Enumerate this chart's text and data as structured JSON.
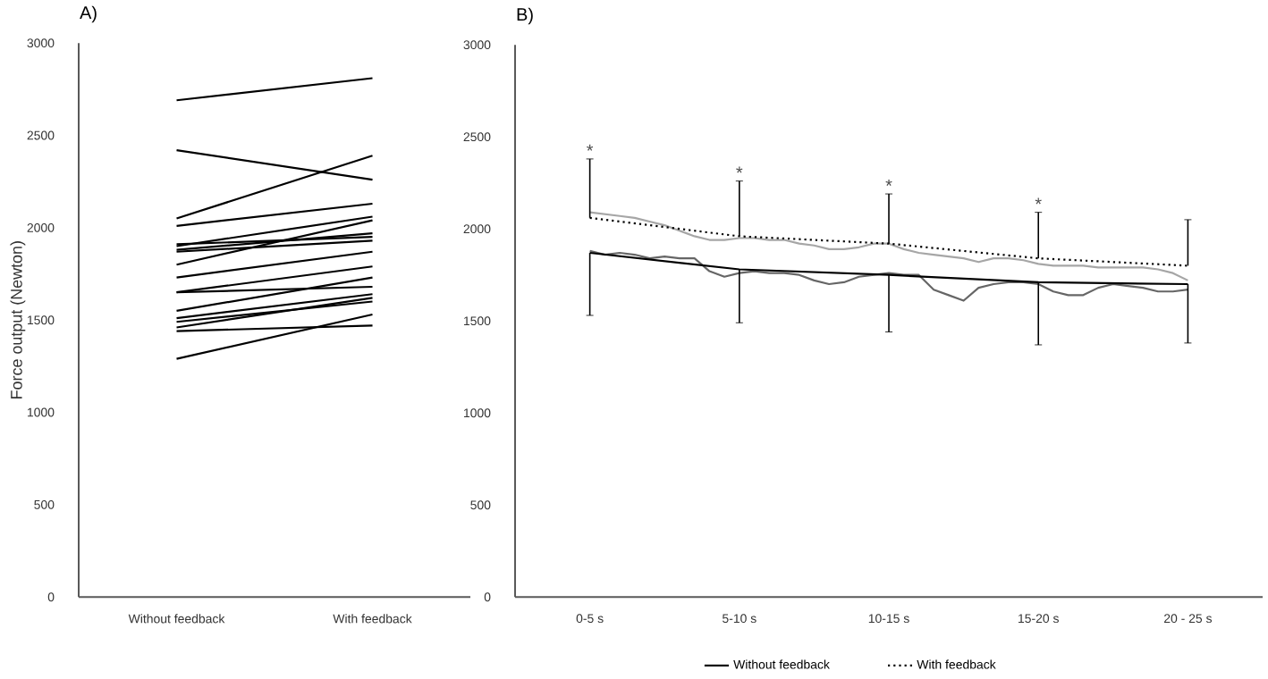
{
  "chart_data": [
    {
      "type": "line",
      "title": "A)",
      "ylabel": "Force output (Newton)",
      "categories": [
        "Without feedback",
        "With feedback"
      ],
      "ylim": [
        0,
        3000
      ],
      "yticks": [
        0,
        500,
        1000,
        1500,
        2000,
        2500,
        3000
      ],
      "series": [
        {
          "color": "#000000",
          "values": [
            2690,
            2810
          ]
        },
        {
          "color": "#000000",
          "values": [
            2420,
            2260
          ]
        },
        {
          "color": "#000000",
          "values": [
            2050,
            2390
          ]
        },
        {
          "color": "#000000",
          "values": [
            2010,
            2130
          ]
        },
        {
          "color": "#000000",
          "values": [
            1910,
            1950
          ]
        },
        {
          "color": "#000000",
          "values": [
            1900,
            2060
          ]
        },
        {
          "color": "#000000",
          "values": [
            1880,
            1970
          ]
        },
        {
          "color": "#000000",
          "values": [
            1870,
            1930
          ]
        },
        {
          "color": "#000000",
          "values": [
            1800,
            2040
          ]
        },
        {
          "color": "#000000",
          "values": [
            1730,
            1870
          ]
        },
        {
          "color": "#000000",
          "values": [
            1650,
            1790
          ]
        },
        {
          "color": "#000000",
          "values": [
            1650,
            1680
          ]
        },
        {
          "color": "#000000",
          "values": [
            1550,
            1730
          ]
        },
        {
          "color": "#000000",
          "values": [
            1510,
            1640
          ]
        },
        {
          "color": "#000000",
          "values": [
            1490,
            1600
          ]
        },
        {
          "color": "#000000",
          "values": [
            1460,
            1620
          ]
        },
        {
          "color": "#000000",
          "values": [
            1440,
            1470
          ]
        },
        {
          "color": "#000000",
          "values": [
            1290,
            1530
          ]
        }
      ]
    },
    {
      "type": "line",
      "title": "B)",
      "categories": [
        "0-5 s",
        null,
        null,
        null,
        null,
        null,
        null,
        null,
        null,
        null,
        "5-10 s",
        null,
        null,
        null,
        null,
        null,
        null,
        null,
        null,
        null,
        "10-15 s",
        null,
        null,
        null,
        null,
        null,
        null,
        null,
        null,
        null,
        "15-20 s",
        null,
        null,
        null,
        null,
        null,
        null,
        null,
        null,
        null,
        "20 - 25 s"
      ],
      "ylim": [
        0,
        3000
      ],
      "yticks": [
        0,
        500,
        1000,
        1500,
        2000,
        2500,
        3000
      ],
      "legend": "bottom",
      "annotations": [
        {
          "text": "*",
          "x": "0-5 s",
          "y": 2380
        },
        {
          "text": "*",
          "x": "5-10 s",
          "y": 2260
        },
        {
          "text": "*",
          "x": "10-15 s",
          "y": 2190
        },
        {
          "text": "*",
          "x": "15-20 s",
          "y": 2090
        }
      ],
      "series": [
        {
          "color": "#a6a6a6",
          "line_style": "solid",
          "values": [
            2090,
            2080,
            2070,
            2060,
            2040,
            2020,
            1990,
            1960,
            1940,
            1940,
            1950,
            1950,
            1940,
            1940,
            1920,
            1910,
            1890,
            1890,
            1900,
            1920,
            1920,
            1890,
            1870,
            1860,
            1850,
            1840,
            1820,
            1840,
            1840,
            1830,
            1810,
            1800,
            1800,
            1800,
            1790,
            1790,
            1790,
            1790,
            1780,
            1760,
            1720
          ]
        },
        {
          "color": "#666666",
          "line_style": "solid",
          "values": [
            1880,
            1860,
            1870,
            1860,
            1840,
            1850,
            1840,
            1840,
            1770,
            1740,
            1760,
            1770,
            1760,
            1760,
            1750,
            1720,
            1700,
            1710,
            1740,
            1750,
            1760,
            1750,
            1750,
            1670,
            1640,
            1610,
            1680,
            1700,
            1710,
            1710,
            1700,
            1660,
            1640,
            1640,
            1680,
            1700,
            1690,
            1680,
            1660,
            1660,
            1670
          ]
        },
        {
          "name": "Without feedback",
          "color": "#000000",
          "line_style": "solid",
          "values": [
            1870,
            null,
            null,
            null,
            null,
            null,
            null,
            null,
            null,
            null,
            1780,
            null,
            null,
            null,
            null,
            null,
            null,
            null,
            null,
            null,
            1750,
            null,
            null,
            null,
            null,
            null,
            null,
            null,
            null,
            null,
            1710,
            null,
            null,
            null,
            null,
            null,
            null,
            null,
            null,
            null,
            1700
          ],
          "errors": [
            [
              1530,
              1870
            ],
            null,
            null,
            null,
            null,
            null,
            null,
            null,
            null,
            null,
            [
              1490,
              1780
            ],
            null,
            null,
            null,
            null,
            null,
            null,
            null,
            null,
            null,
            [
              1440,
              1750
            ],
            null,
            null,
            null,
            null,
            null,
            null,
            null,
            null,
            null,
            [
              1370,
              1710
            ],
            null,
            null,
            null,
            null,
            null,
            null,
            null,
            null,
            null,
            [
              1380,
              1700
            ]
          ]
        },
        {
          "name": "With feedback",
          "color": "#000000",
          "line_style": "dotted",
          "values": [
            2060,
            null,
            null,
            null,
            null,
            null,
            null,
            null,
            null,
            null,
            1960,
            null,
            null,
            null,
            null,
            null,
            null,
            null,
            null,
            null,
            1920,
            null,
            null,
            null,
            null,
            null,
            null,
            null,
            null,
            null,
            1840,
            null,
            null,
            null,
            null,
            null,
            null,
            null,
            null,
            null,
            1800
          ],
          "errors": [
            [
              2060,
              2380
            ],
            null,
            null,
            null,
            null,
            null,
            null,
            null,
            null,
            null,
            [
              1960,
              2260
            ],
            null,
            null,
            null,
            null,
            null,
            null,
            null,
            null,
            null,
            [
              1920,
              2190
            ],
            null,
            null,
            null,
            null,
            null,
            null,
            null,
            null,
            null,
            [
              1840,
              2090
            ],
            null,
            null,
            null,
            null,
            null,
            null,
            null,
            null,
            null,
            [
              1800,
              2050
            ]
          ]
        }
      ]
    }
  ]
}
